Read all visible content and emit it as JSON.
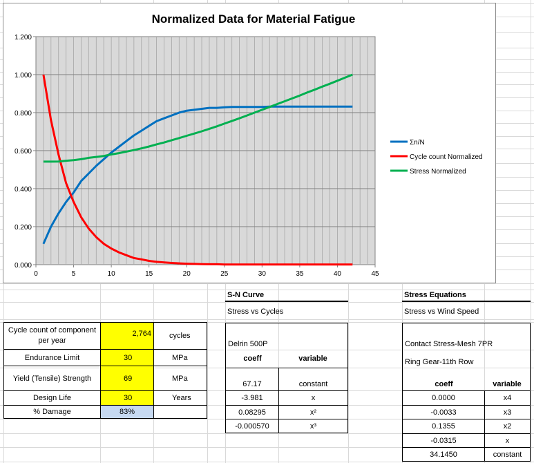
{
  "chart_data": {
    "type": "line",
    "title": "Normalized Data for Material Fatigue",
    "xlim": [
      0,
      45
    ],
    "ylim": [
      0,
      1.2
    ],
    "x_ticks": [
      "0",
      "5",
      "10",
      "15",
      "20",
      "25",
      "30",
      "35",
      "40",
      "45"
    ],
    "y_ticks": [
      "0.000",
      "0.200",
      "0.400",
      "0.600",
      "0.800",
      "1.000",
      "1.200"
    ],
    "grid": true,
    "legend_position": "right",
    "x": [
      1,
      2,
      3,
      4,
      5,
      6,
      7,
      8,
      9,
      10,
      11,
      12,
      13,
      14,
      15,
      16,
      17,
      18,
      19,
      20,
      21,
      22,
      23,
      24,
      25,
      26,
      27,
      28,
      29,
      30,
      31,
      32,
      33,
      34,
      35,
      36,
      37,
      38,
      39,
      40,
      41,
      42
    ],
    "series": [
      {
        "name": "Σn/N",
        "color": "#0070c0",
        "values": [
          0.11,
          0.2,
          0.27,
          0.33,
          0.38,
          0.44,
          0.48,
          0.52,
          0.555,
          0.59,
          0.62,
          0.65,
          0.68,
          0.705,
          0.73,
          0.755,
          0.77,
          0.785,
          0.8,
          0.81,
          0.815,
          0.82,
          0.825,
          0.825,
          0.828,
          0.83,
          0.83,
          0.83,
          0.83,
          0.83,
          0.832,
          0.832,
          0.832,
          0.832,
          0.832,
          0.832,
          0.832,
          0.832,
          0.832,
          0.832,
          0.832,
          0.832
        ]
      },
      {
        "name": "Cycle count Normalized",
        "color": "#ff0000",
        "values": [
          1.0,
          0.76,
          0.58,
          0.43,
          0.33,
          0.25,
          0.19,
          0.145,
          0.11,
          0.085,
          0.065,
          0.05,
          0.035,
          0.028,
          0.02,
          0.015,
          0.012,
          0.009,
          0.007,
          0.005,
          0.004,
          0.003,
          0.002,
          0.002,
          0.001,
          0.001,
          0.001,
          0.001,
          0.001,
          0.001,
          0.001,
          0.001,
          0.001,
          0.001,
          0.001,
          0.001,
          0.001,
          0.001,
          0.001,
          0.001,
          0.001,
          0.001
        ]
      },
      {
        "name": "Stress Normalized",
        "color": "#00b050",
        "values": [
          0.542,
          0.542,
          0.543,
          0.547,
          0.55,
          0.555,
          0.562,
          0.567,
          0.572,
          0.58,
          0.587,
          0.595,
          0.603,
          0.612,
          0.622,
          0.633,
          0.643,
          0.655,
          0.666,
          0.678,
          0.69,
          0.702,
          0.715,
          0.728,
          0.742,
          0.756,
          0.77,
          0.785,
          0.8,
          0.815,
          0.83,
          0.845,
          0.86,
          0.875,
          0.89,
          0.906,
          0.921,
          0.937,
          0.952,
          0.968,
          0.984,
          1.0
        ]
      }
    ]
  },
  "inputs": {
    "cycle_label": "Cycle count of component per year",
    "cycle_value": "2,764",
    "cycle_unit": "cycles",
    "endurance_label": "Endurance Limit",
    "endurance_value": "30",
    "endurance_unit": "MPa",
    "yield_label": "Yield (Tensile) Strength",
    "yield_value": "69",
    "yield_unit": "MPa",
    "life_label": "Design Life",
    "life_value": "30",
    "life_unit": "Years",
    "damage_label": "% Damage",
    "damage_value": "83%"
  },
  "sn_curve": {
    "title": "S-N Curve",
    "subtitle": "Stress vs Cycles",
    "material": "Delrin 500P",
    "coeff_header": "coeff",
    "variable_header": "variable",
    "rows": [
      {
        "coeff": "67.17",
        "variable": "constant"
      },
      {
        "coeff": "-3.981",
        "variable": "x"
      },
      {
        "coeff": "0.08295",
        "variable": "x²"
      },
      {
        "coeff": "-0.000570",
        "variable": "x³"
      }
    ]
  },
  "stress_equations": {
    "title": "Stress Equations",
    "subtitle": "Stress vs Wind Speed",
    "line1": "Contact Stress-Mesh 7PR",
    "line2": "Ring Gear-11th Row",
    "coeff_header": "coeff",
    "variable_header": "variable",
    "rows": [
      {
        "coeff": "0.0000",
        "variable": "x4"
      },
      {
        "coeff": "-0.0033",
        "variable": "x3"
      },
      {
        "coeff": "0.1355",
        "variable": "x2"
      },
      {
        "coeff": "-0.0315",
        "variable": "x"
      },
      {
        "coeff": "34.1450",
        "variable": "constant"
      }
    ]
  }
}
